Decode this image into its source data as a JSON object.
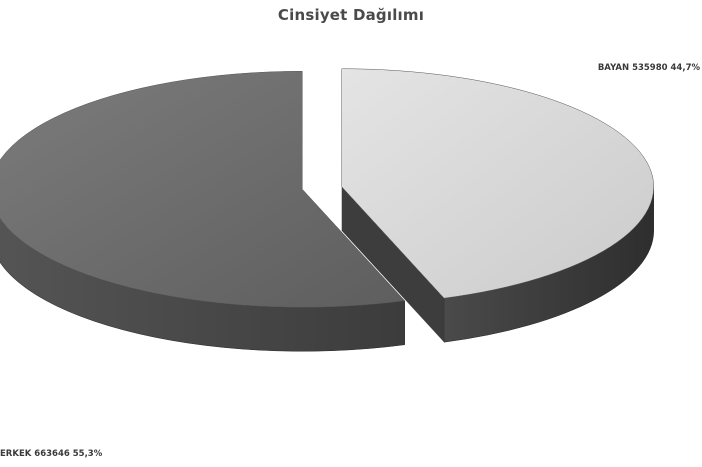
{
  "chart_data": {
    "type": "pie",
    "style": "3d-exploded",
    "title": "Cinsiyet Dağılımı",
    "slices": [
      {
        "name": "ERKEK",
        "value": 663646,
        "percent": "55,3%",
        "label": "ERKEK 663646 55,3%",
        "color": "#6a6a6a"
      },
      {
        "name": "BAYAN",
        "value": 535980,
        "percent": "44,7%",
        "label": "BAYAN 535980 44,7%",
        "color": "#d6d6d6"
      }
    ],
    "legend": "none",
    "data_labels": "outside"
  }
}
